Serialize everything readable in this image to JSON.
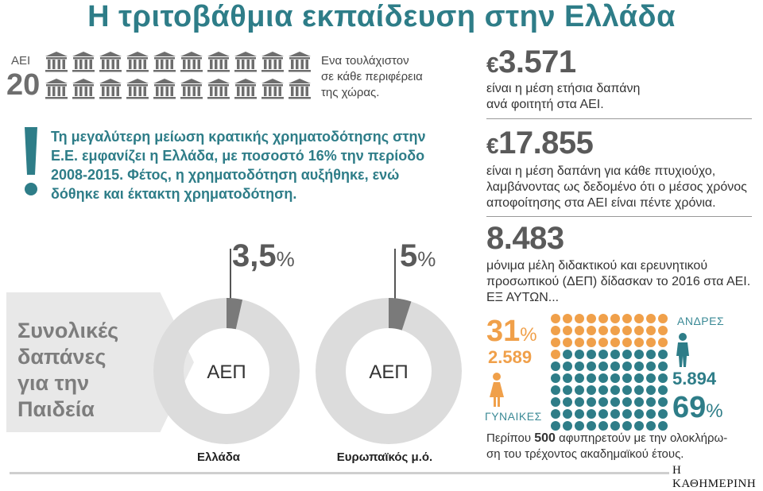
{
  "title": "Η τριτοβάθμια εκπαίδευση στην Ελλάδα",
  "universities": {
    "label": "ΑΕΙ",
    "count": "20",
    "note_line1": "Ενα τουλάχιστον",
    "note_line2": "σε κάθε περιφέρεια",
    "note_line3": "της χώρας.",
    "icon_name": "university-building-icon"
  },
  "alert": {
    "icon_name": "exclamation-icon",
    "text": "Τη μεγαλύτερη μείωση κρατικής χρηματοδότησης στην Ε.Ε. εμφανίζει η Ελλάδα, με ποσοστό 16% την περίοδο 2008-2015. Φέτος, η χρηματοδότηση αυξήθηκε, ενώ δόθηκε και έκτακτη χρηματοδότηση."
  },
  "spending": {
    "side_label_line1": "Συνολικές",
    "side_label_line2": "δαπάνες",
    "side_label_line3": "για την",
    "side_label_line4": "Παιδεία",
    "center_label": "ΑΕΠ",
    "donuts": [
      {
        "value_text": "3,5",
        "unit": "%",
        "fraction": 0.035,
        "caption": "Ελλάδα"
      },
      {
        "value_text": "5",
        "unit": "%",
        "fraction": 0.05,
        "caption": "Ευρωπαϊκός μ.ό."
      }
    ]
  },
  "stats": {
    "s1_currency": "€",
    "s1_value": "3.571",
    "s1_line1": "είναι η μέση ετήσια δαπάνη",
    "s1_line2": "ανά φοιτητή στα ΑΕΙ.",
    "s2_currency": "€",
    "s2_value": "17.855",
    "s2_line1": "είναι η μέση δαπάνη για κάθε πτυχιούχο,",
    "s2_line2": "λαμβάνοντας ως δεδομένο ότι ο μέσος χρόνος",
    "s2_line3": "αποφοίτησης στα ΑΕΙ είναι πέντε χρόνια.",
    "s3_value": "8.483",
    "s3_line1": "μόνιμα μέλη διδακτικού και ερευνητικού",
    "s3_line2": "προσωπικού (ΔΕΠ) δίδασκαν το 2016 στα ΑΕΙ.",
    "s3_line3": "ΕΞ ΑΥΤΩΝ..."
  },
  "gender": {
    "women_pct": "31",
    "women_unit": "%",
    "women_count": "2.589",
    "women_label": "ΓΥΝΑΙΚΕΣ",
    "men_label": "ΑΝΔΡΕΣ",
    "men_count": "5.894",
    "men_pct": "69",
    "men_unit": "%",
    "women_fraction": 0.31,
    "women_color": "#f0a04a",
    "men_color": "#2e7d88"
  },
  "retire": {
    "pre": "Περίπου ",
    "num": "500",
    "post": " αφυπηρετούν με την ολοκλήρω-",
    "line2": "ση του τρέχοντος ακαδημαϊκού έτους."
  },
  "brand": "Η ΚΑΘΗΜΕΡΙΝΗ",
  "colors": {
    "teal": "#2e7d88",
    "orange": "#f0a04a",
    "gray": "#7d7d7d",
    "donut_light": "#dcdcdc",
    "donut_dark": "#7a7a7a"
  }
}
